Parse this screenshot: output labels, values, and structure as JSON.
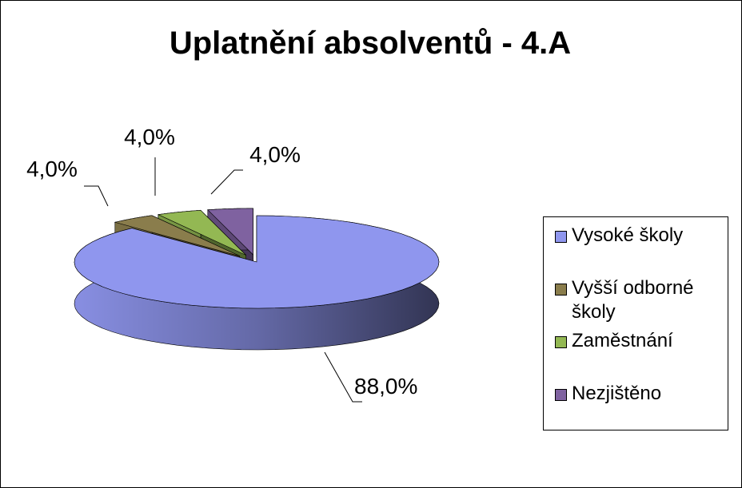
{
  "chart_data": {
    "type": "pie3d",
    "title": "Uplatnění absolventů - 4.A",
    "categories": [
      "Vysoké školy",
      "Vyšší odborné školy",
      "Zaměstnání",
      "Nezjištěno"
    ],
    "values": [
      88,
      4,
      4,
      4
    ],
    "value_labels": [
      "88,0%",
      "4,0%",
      "4,0%",
      "4,0%"
    ],
    "colors": [
      "#8f96ee",
      "#8a7d4c",
      "#93b853",
      "#7f62a0"
    ],
    "legend": "right"
  }
}
